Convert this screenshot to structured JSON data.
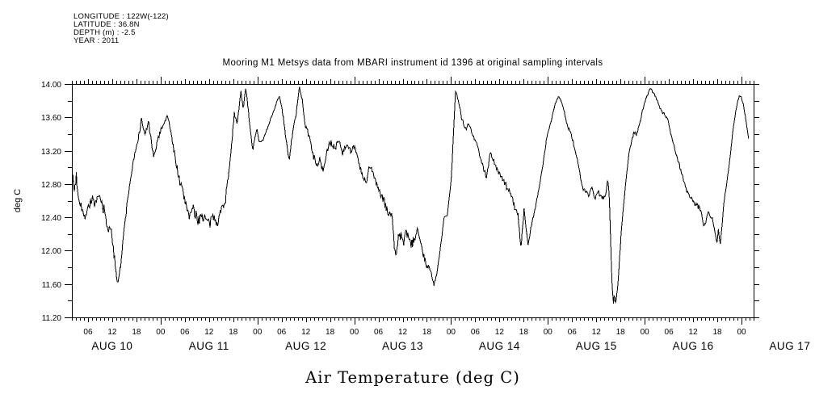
{
  "meta_block": {
    "lines": [
      "LONGITUDE : 122W(-122)",
      "LATITUDE : 36.8N",
      "DEPTH (m) : -2.5",
      "YEAR : 2011"
    ]
  },
  "title": "Mooring M1 Metsys data from MBARI instrument id 1396 at original sampling intervals",
  "y_axis_label": "deg C",
  "x_axis_title": "Air Temperature (deg C)",
  "chart_data": {
    "type": "line",
    "title": "Mooring M1 Metsys data from MBARI instrument id 1396 at original sampling intervals",
    "xlabel": "Air Temperature (deg C)",
    "ylabel": "deg C",
    "line_color": "#000000",
    "background": "#ffffff",
    "grid": false,
    "legend": "none",
    "ylim": [
      11.2,
      14.0
    ],
    "y_major_tick": 0.4,
    "y_minor_tick": 0.2,
    "y_label_format_decimals": 2,
    "x_unit": "hours since AUG 10 2011 00:00",
    "x_axis_range_hours": [
      2.0,
      171.0
    ],
    "x_minor_tick_hours": 1,
    "x_labeled_tick_hours": 6,
    "hour_label_cycle": [
      "00",
      "06",
      "12",
      "18"
    ],
    "day_labels": [
      {
        "label": "AUG 10",
        "noon_hour": 12
      },
      {
        "label": "AUG 11",
        "noon_hour": 36
      },
      {
        "label": "AUG 12",
        "noon_hour": 60
      },
      {
        "label": "AUG 13",
        "noon_hour": 84
      },
      {
        "label": "AUG 14",
        "noon_hour": 108
      },
      {
        "label": "AUG 15",
        "noon_hour": 132
      },
      {
        "label": "AUG 16",
        "noon_hour": 156
      },
      {
        "label": "AUG 17",
        "noon_hour": 180
      }
    ],
    "series": [
      {
        "name": "air_temperature_degC",
        "sample_interval_minutes": 10,
        "noise_base": 0.06,
        "noise_seed": 7,
        "keypoints_format": [
          "hours_since_aug10_0000",
          "deg_C",
          "local_noise_scale"
        ],
        "keypoints": [
          [
            2.1,
            12.88,
            1.4
          ],
          [
            2.6,
            12.72,
            1.4
          ],
          [
            3.1,
            12.9,
            1.3
          ],
          [
            3.6,
            12.66,
            1.2
          ],
          [
            4.3,
            12.56,
            1.0
          ],
          [
            5.0,
            12.38,
            1.0
          ],
          [
            5.7,
            12.49,
            1.0
          ],
          [
            6.4,
            12.56,
            1.0
          ],
          [
            7.1,
            12.63,
            1.0
          ],
          [
            7.9,
            12.53,
            1.0
          ],
          [
            8.6,
            12.65,
            1.0
          ],
          [
            9.4,
            12.57,
            1.0
          ],
          [
            10.1,
            12.47,
            1.0
          ],
          [
            10.9,
            12.22,
            1.0
          ],
          [
            11.5,
            12.33,
            1.0
          ],
          [
            12.1,
            12.06,
            0.9
          ],
          [
            12.7,
            11.86,
            0.8
          ],
          [
            13.3,
            11.62,
            0.5
          ],
          [
            14.1,
            11.82,
            0.5
          ],
          [
            15.0,
            12.28,
            0.7
          ],
          [
            16.0,
            12.68,
            0.7
          ],
          [
            17.0,
            13.0,
            0.7
          ],
          [
            18.1,
            13.26,
            0.6
          ],
          [
            19.3,
            13.57,
            0.5
          ],
          [
            20.1,
            13.38,
            0.5
          ],
          [
            21.0,
            13.55,
            0.5
          ],
          [
            21.7,
            13.3,
            0.5
          ],
          [
            22.3,
            13.1,
            0.4
          ],
          [
            23.1,
            13.3,
            0.4
          ],
          [
            24.1,
            13.46,
            0.4
          ],
          [
            25.8,
            13.62,
            0.5
          ],
          [
            26.6,
            13.4,
            0.6
          ],
          [
            27.6,
            13.12,
            0.7
          ],
          [
            28.6,
            12.86,
            0.9
          ],
          [
            29.6,
            12.68,
            1.1
          ],
          [
            30.3,
            12.56,
            1.2
          ],
          [
            31.1,
            12.43,
            1.2
          ],
          [
            32.1,
            12.49,
            1.2
          ],
          [
            33.1,
            12.36,
            1.2
          ],
          [
            34.1,
            12.43,
            1.1
          ],
          [
            35.1,
            12.38,
            1.1
          ],
          [
            36.1,
            12.31,
            1.1
          ],
          [
            37.1,
            12.41,
            1.0
          ],
          [
            38.1,
            12.35,
            1.0
          ],
          [
            39.1,
            12.5,
            0.8
          ],
          [
            40.1,
            12.62,
            0.8
          ],
          [
            40.9,
            12.95,
            0.7
          ],
          [
            41.6,
            13.3,
            0.7
          ],
          [
            42.3,
            13.63,
            0.6
          ],
          [
            42.9,
            13.5,
            0.6
          ],
          [
            43.5,
            13.76,
            0.5
          ],
          [
            43.9,
            13.91,
            0.4
          ],
          [
            44.5,
            13.72,
            0.5
          ],
          [
            45.1,
            13.93,
            0.4
          ],
          [
            45.7,
            13.7,
            0.5
          ],
          [
            46.2,
            13.45,
            0.5
          ],
          [
            46.8,
            13.2,
            0.4
          ],
          [
            47.3,
            13.33,
            0.4
          ],
          [
            47.9,
            13.46,
            0.3
          ],
          [
            48.4,
            13.3,
            0.25
          ],
          [
            49.4,
            13.33,
            0.06
          ],
          [
            53.4,
            13.86,
            0.1
          ],
          [
            54.1,
            13.7,
            0.35
          ],
          [
            54.8,
            13.45,
            0.35
          ],
          [
            55.5,
            13.18,
            0.35
          ],
          [
            55.9,
            13.11,
            0.35
          ],
          [
            56.6,
            13.36,
            0.4
          ],
          [
            57.6,
            13.66,
            0.35
          ],
          [
            58.4,
            13.96,
            0.25
          ],
          [
            59.1,
            13.8,
            0.35
          ],
          [
            59.8,
            13.52,
            0.45
          ],
          [
            60.6,
            13.41,
            0.55
          ],
          [
            61.6,
            13.21,
            0.65
          ],
          [
            62.6,
            13.0,
            0.7
          ],
          [
            63.4,
            13.11,
            0.7
          ],
          [
            64.3,
            12.96,
            0.7
          ],
          [
            65.1,
            13.16,
            0.7
          ],
          [
            66.1,
            13.3,
            0.7
          ],
          [
            67.1,
            13.22,
            0.7
          ],
          [
            68.1,
            13.34,
            0.7
          ],
          [
            69.1,
            13.18,
            0.6
          ],
          [
            70.1,
            13.28,
            0.6
          ],
          [
            71.1,
            13.2,
            0.5
          ],
          [
            72.1,
            13.26,
            0.5
          ],
          [
            73.1,
            13.05,
            0.6
          ],
          [
            74.1,
            12.88,
            0.6
          ],
          [
            75.1,
            12.81,
            0.6
          ],
          [
            75.7,
            13.01,
            0.5
          ],
          [
            76.6,
            12.95,
            0.6
          ],
          [
            77.6,
            12.8,
            0.7
          ],
          [
            78.6,
            12.66,
            0.8
          ],
          [
            79.6,
            12.56,
            0.9
          ],
          [
            80.6,
            12.44,
            0.9
          ],
          [
            81.5,
            12.4,
            0.8
          ],
          [
            81.9,
            12.03,
            0.6
          ],
          [
            82.4,
            11.96,
            0.9
          ],
          [
            83.1,
            12.22,
            1.1
          ],
          [
            84.1,
            12.1,
            1.1
          ],
          [
            85.1,
            12.21,
            1.1
          ],
          [
            86.1,
            12.05,
            1.1
          ],
          [
            87.0,
            12.15,
            0.9
          ],
          [
            87.8,
            12.26,
            0.7
          ],
          [
            88.8,
            12.05,
            0.7
          ],
          [
            89.5,
            11.87,
            0.7
          ],
          [
            90.5,
            11.8,
            0.7
          ],
          [
            91.2,
            11.7,
            0.5
          ],
          [
            91.8,
            11.58,
            0.35
          ],
          [
            92.6,
            11.76,
            0.35
          ],
          [
            93.6,
            12.12,
            0.25
          ],
          [
            94.3,
            12.4,
            0.15
          ],
          [
            95.1,
            12.43,
            0.15
          ],
          [
            96.1,
            12.9,
            0.12
          ],
          [
            97.1,
            13.92,
            0.15
          ],
          [
            98.0,
            13.76,
            0.3
          ],
          [
            98.6,
            13.6,
            0.35
          ],
          [
            99.6,
            13.46,
            0.35
          ],
          [
            100.4,
            13.53,
            0.35
          ],
          [
            101.4,
            13.38,
            0.4
          ],
          [
            102.4,
            13.28,
            0.45
          ],
          [
            103.4,
            13.1,
            0.45
          ],
          [
            104.2,
            12.96,
            0.45
          ],
          [
            104.8,
            12.88,
            0.45
          ],
          [
            105.7,
            13.19,
            0.4
          ],
          [
            106.6,
            13.06,
            0.5
          ],
          [
            107.6,
            12.96,
            0.5
          ],
          [
            108.6,
            12.86,
            0.5
          ],
          [
            109.6,
            12.79,
            0.6
          ],
          [
            110.6,
            12.71,
            0.6
          ],
          [
            111.6,
            12.56,
            0.7
          ],
          [
            112.6,
            12.43,
            0.7
          ],
          [
            113.3,
            12.02,
            0.4
          ],
          [
            114.1,
            12.49,
            0.4
          ],
          [
            115.1,
            12.06,
            0.4
          ],
          [
            115.8,
            12.28,
            0.35
          ],
          [
            117.0,
            12.55,
            0.25
          ],
          [
            118.3,
            12.88,
            0.25
          ],
          [
            119.7,
            13.35,
            0.25
          ],
          [
            121.0,
            13.6,
            0.25
          ],
          [
            122.0,
            13.8,
            0.3
          ],
          [
            122.8,
            13.85,
            0.3
          ],
          [
            123.8,
            13.72,
            0.35
          ],
          [
            124.7,
            13.52,
            0.4
          ],
          [
            125.7,
            13.4,
            0.4
          ],
          [
            126.7,
            13.22,
            0.4
          ],
          [
            127.4,
            13.08,
            0.4
          ],
          [
            128.4,
            12.78,
            0.45
          ],
          [
            129.4,
            12.7,
            0.45
          ],
          [
            130.1,
            12.66,
            0.45
          ],
          [
            130.9,
            12.76,
            0.45
          ],
          [
            131.6,
            12.62,
            0.45
          ],
          [
            132.4,
            12.72,
            0.45
          ],
          [
            133.3,
            12.64,
            0.4
          ],
          [
            134.2,
            12.63,
            0.35
          ],
          [
            134.8,
            12.86,
            0.2
          ],
          [
            135.2,
            12.7,
            0.12
          ],
          [
            135.9,
            11.59,
            0.12
          ],
          [
            136.3,
            11.36,
            0.12
          ],
          [
            136.5,
            11.5,
            0.1
          ],
          [
            136.8,
            11.36,
            0.1
          ],
          [
            137.3,
            11.56,
            0.12
          ],
          [
            138.3,
            12.3,
            0.12
          ],
          [
            139.4,
            12.88,
            0.15
          ],
          [
            140.2,
            13.2,
            0.2
          ],
          [
            141.3,
            13.42,
            0.25
          ],
          [
            142.0,
            13.38,
            0.25
          ],
          [
            142.6,
            13.5,
            0.25
          ],
          [
            143.6,
            13.7,
            0.25
          ],
          [
            144.5,
            13.85,
            0.25
          ],
          [
            145.3,
            13.96,
            0.25
          ],
          [
            146.5,
            13.86,
            0.3
          ],
          [
            148.0,
            13.7,
            0.3
          ],
          [
            149.7,
            13.58,
            0.3
          ],
          [
            151.3,
            13.24,
            0.35
          ],
          [
            152.3,
            13.08,
            0.4
          ],
          [
            153.3,
            12.9,
            0.45
          ],
          [
            154.5,
            12.72,
            0.45
          ],
          [
            155.9,
            12.6,
            0.5
          ],
          [
            157.0,
            12.55,
            0.55
          ],
          [
            157.9,
            12.5,
            0.55
          ],
          [
            158.7,
            12.3,
            0.45
          ],
          [
            159.9,
            12.46,
            0.45
          ],
          [
            160.9,
            12.35,
            0.45
          ],
          [
            161.9,
            12.1,
            0.35
          ],
          [
            162.3,
            12.28,
            0.35
          ],
          [
            162.7,
            12.05,
            0.25
          ],
          [
            163.7,
            12.6,
            0.15
          ],
          [
            164.9,
            13.0,
            0.15
          ],
          [
            165.9,
            13.45,
            0.15
          ],
          [
            166.7,
            13.72,
            0.25
          ],
          [
            167.5,
            13.87,
            0.3
          ],
          [
            168.3,
            13.8,
            0.25
          ],
          [
            169.1,
            13.55,
            0.18
          ],
          [
            169.9,
            13.3,
            0.15
          ]
        ]
      }
    ]
  }
}
